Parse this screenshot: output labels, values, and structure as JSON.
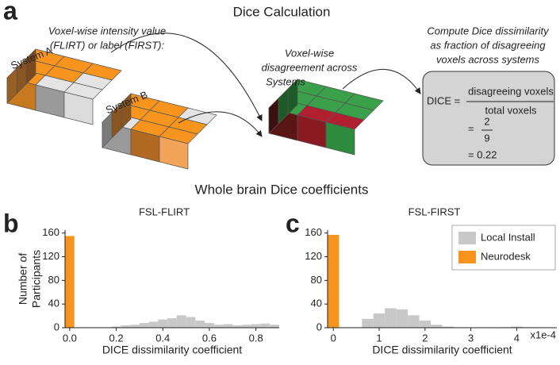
{
  "panel_labels": [
    "a",
    "b",
    "c"
  ],
  "diagram": {
    "title": "Dice Calculation",
    "input_label": [
      "Voxel-wise intensity value",
      "(FLIRT) or label (FIRST):"
    ],
    "system_a": "System A",
    "system_b": "System B",
    "disagreement_label": [
      "Voxel-wise",
      "disagreement across",
      "Systems"
    ],
    "compute_label": [
      "Compute Dice dissimilarity",
      "as fraction of disagreeing",
      "voxels across systems"
    ],
    "formula": {
      "lhs": "DICE =",
      "numerator": "disagreeing voxels",
      "denominator": "total voxels",
      "eq2": "=",
      "frac_num": "2",
      "frac_den": "9",
      "result": "= 0.22"
    }
  },
  "section_title": "Whole brain Dice coefficients",
  "chart_data": [
    {
      "type": "histogram",
      "title": "FSL-FLIRT",
      "x_label": "DICE dissimilarity coefficient",
      "y_label": [
        "Number of",
        "Participants"
      ],
      "bins": [
        -0.02,
        0.02,
        0.06,
        0.1,
        0.14,
        0.18,
        0.22,
        0.26,
        0.3,
        0.34,
        0.38,
        0.42,
        0.46,
        0.5,
        0.54,
        0.58,
        0.62,
        0.66,
        0.7,
        0.74,
        0.78,
        0.82,
        0.86,
        0.9
      ],
      "series": [
        {
          "color": "#c8c8c8",
          "values": [
            0,
            0,
            0,
            0,
            0,
            2,
            4,
            5,
            8,
            10,
            14,
            16,
            21,
            18,
            12,
            8,
            5,
            6,
            4,
            5,
            6,
            7,
            5
          ]
        },
        {
          "color": "#f7941d",
          "values": [
            155,
            0,
            0,
            0,
            0,
            0,
            0,
            0,
            0,
            0,
            0,
            0,
            0,
            0,
            0,
            0,
            0,
            0,
            0,
            0,
            0,
            0,
            0
          ]
        }
      ],
      "xlim": [
        -0.02,
        0.9
      ],
      "ylim": [
        0,
        165
      ],
      "xticks": [
        {
          "value": 0,
          "label": "0.0"
        },
        0.2,
        0.4,
        0.6,
        0.8
      ],
      "yticks": [
        0,
        40,
        80,
        120,
        160
      ]
    },
    {
      "type": "histogram",
      "title": "FSL-FIRST",
      "x_label": "DICE dissimilarity coefficient",
      "x_scale_label": "x1e-4",
      "bins": [
        -0.125,
        0.125,
        0.375,
        0.625,
        0.875,
        1.125,
        1.375,
        1.625,
        1.875,
        2.125,
        2.375,
        2.625,
        2.875,
        3.125,
        3.375,
        3.625,
        3.875,
        4.125,
        4.375,
        4.625,
        4.875
      ],
      "series": [
        {
          "name": "Local Install",
          "color": "#c8c8c8",
          "values": [
            0,
            0,
            0,
            15,
            24,
            33,
            31,
            21,
            12,
            5,
            2,
            0,
            0,
            0,
            0,
            1,
            2,
            1,
            0,
            0
          ]
        },
        {
          "name": "Neurodesk",
          "color": "#f7941d",
          "values": [
            157,
            0,
            0,
            0,
            0,
            0,
            0,
            0,
            0,
            0,
            0,
            0,
            0,
            0,
            0,
            0,
            0,
            0,
            0,
            0
          ]
        }
      ],
      "xlim": [
        -0.125,
        4.875
      ],
      "ylim": [
        0,
        165
      ],
      "xticks": [
        0,
        1,
        2,
        3,
        4
      ],
      "yticks": [
        0,
        40,
        80,
        120,
        160
      ],
      "legend": "upper right"
    }
  ]
}
